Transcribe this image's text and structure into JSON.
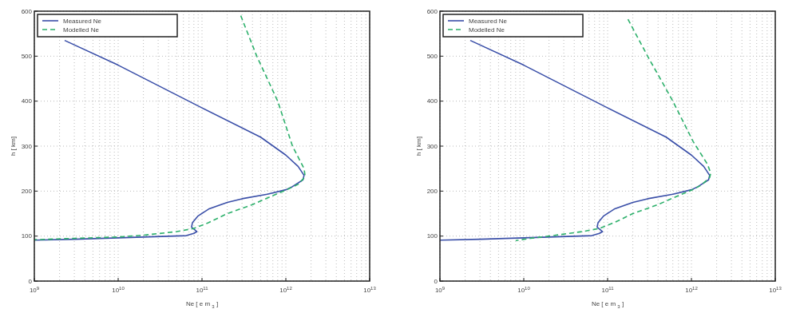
{
  "chart_data": [
    {
      "type": "line",
      "xlabel": "Ne [ e m $_{3}$ ]",
      "ylabel": "h [ km]",
      "log": "x",
      "grid": true,
      "legend": "top left",
      "xlim": [
        1000000000.0,
        10000000000000.0
      ],
      "ylim": [
        0,
        600
      ],
      "xticks": [
        {
          "value": 1000000000.0,
          "label": "10$^{9}$"
        },
        {
          "value": 10000000000.0,
          "label": "10$^{10}$"
        },
        {
          "value": 100000000000.0,
          "label": "10$^{11}$"
        },
        {
          "value": 1000000000000.0,
          "label": "10$^{12}$"
        },
        {
          "value": 10000000000000.0,
          "label": "10$^{13}$"
        }
      ],
      "yticks": [
        0,
        100,
        200,
        300,
        400,
        500,
        600
      ],
      "series": [
        {
          "name": "Measured  Ne",
          "color": "#3a4fa8",
          "line_style": "solid",
          "x": [
            2300000000.0,
            10000000000.0,
            100000000000.0,
            500000000000.0,
            1000000000000.0,
            1400000000000.0,
            1650000000000.0,
            1600000000000.0,
            1200000000000.0,
            1000000000000.0,
            600000000000.0,
            300000000000.0,
            200000000000.0,
            120000000000.0,
            90000000000.0,
            77000000000.0,
            75000000000.0,
            87000000000.0,
            80000000000.0,
            65000000000.0,
            10000000000.0,
            3000000000.0,
            1000000000.0
          ],
          "values": [
            535,
            480,
            385,
            320,
            280,
            255,
            235,
            225,
            210,
            203,
            193,
            183,
            175,
            160,
            145,
            130,
            120,
            110,
            106,
            101,
            96,
            93,
            91
          ]
        },
        {
          "name": "Modelled  Ne",
          "color": "#2db06b",
          "line_style": "dashed",
          "x": [
            290000000000.0,
            450000000000.0,
            800000000000.0,
            1200000000000.0,
            1650000000000.0,
            1700000000000.0,
            1400000000000.0,
            1000000000000.0,
            700000000000.0,
            400000000000.0,
            200000000000.0,
            120000000000.0,
            80000000000.0,
            50000000000.0,
            20000000000.0,
            10000000000.0,
            3000000000.0,
            1000000000.0
          ],
          "values": [
            590,
            500,
            400,
            300,
            250,
            232,
            215,
            202,
            190,
            170,
            150,
            130,
            117,
            110,
            102,
            98,
            95,
            92
          ]
        }
      ]
    },
    {
      "type": "line",
      "xlabel": "Ne [ e m $_{3}$ ]",
      "ylabel": "h [ km]",
      "log": "x",
      "grid": true,
      "legend": "top left",
      "xlim": [
        1000000000.0,
        10000000000000.0
      ],
      "ylim": [
        0,
        600
      ],
      "xticks": [
        {
          "value": 1000000000.0,
          "label": "10$^{9}$"
        },
        {
          "value": 10000000000.0,
          "label": "10$^{10}$"
        },
        {
          "value": 100000000000.0,
          "label": "10$^{11}$"
        },
        {
          "value": 1000000000000.0,
          "label": "10$^{12}$"
        },
        {
          "value": 10000000000000.0,
          "label": "10$^{13}$"
        }
      ],
      "yticks": [
        0,
        100,
        200,
        300,
        400,
        500,
        600
      ],
      "series": [
        {
          "name": "Measured  Ne",
          "color": "#3a4fa8",
          "line_style": "solid",
          "x": [
            2300000000.0,
            10000000000.0,
            100000000000.0,
            500000000000.0,
            1000000000000.0,
            1400000000000.0,
            1650000000000.0,
            1600000000000.0,
            1200000000000.0,
            1000000000000.0,
            600000000000.0,
            300000000000.0,
            200000000000.0,
            120000000000.0,
            90000000000.0,
            77000000000.0,
            75000000000.0,
            87000000000.0,
            80000000000.0,
            65000000000.0,
            10000000000.0,
            3000000000.0,
            1000000000.0
          ],
          "values": [
            535,
            480,
            385,
            320,
            280,
            255,
            235,
            225,
            210,
            203,
            193,
            183,
            175,
            160,
            145,
            130,
            120,
            110,
            106,
            101,
            96,
            93,
            91
          ]
        },
        {
          "name": "Modelled  Ne",
          "color": "#2db06b",
          "line_style": "dashed",
          "x": [
            175000000000.0,
            300000000000.0,
            600000000000.0,
            1050000000000.0,
            1550000000000.0,
            1700000000000.0,
            1650000000000.0,
            1300000000000.0,
            1000000000000.0,
            700000000000.0,
            400000000000.0,
            200000000000.0,
            120000000000.0,
            80000000000.0,
            50000000000.0,
            20000000000.0,
            12000000000.0,
            8000000000.0
          ],
          "values": [
            582,
            500,
            400,
            310,
            260,
            240,
            230,
            213,
            202,
            190,
            170,
            150,
            130,
            117,
            110,
            100,
            95,
            90
          ]
        }
      ]
    }
  ]
}
